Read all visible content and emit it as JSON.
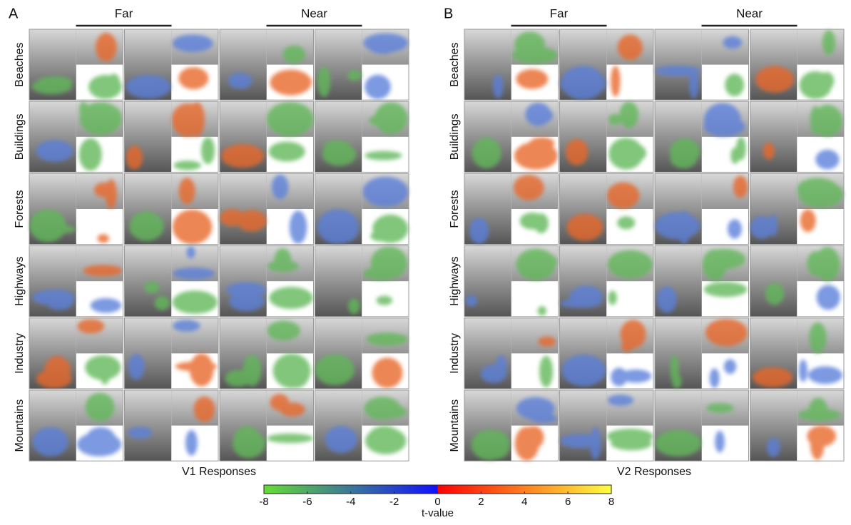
{
  "panels": [
    {
      "letter": "A",
      "columns": [
        "Far",
        "Near"
      ],
      "caption": "V1 Responses"
    },
    {
      "letter": "B",
      "columns": [
        "Far",
        "Near"
      ],
      "caption": "V2 Responses"
    }
  ],
  "rows": [
    "Beaches",
    "Buildings",
    "Forests",
    "Highways",
    "Industry",
    "Mountains"
  ],
  "colorbar": {
    "label": "t-value",
    "lim": [
      -8,
      8
    ],
    "ticks": [
      -8,
      -6,
      -4,
      -2,
      0,
      2,
      4,
      6,
      8
    ]
  }
}
